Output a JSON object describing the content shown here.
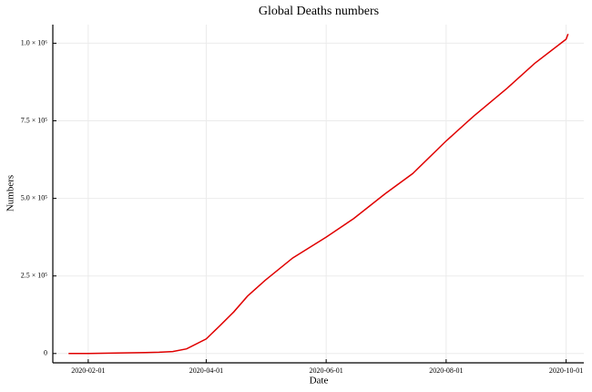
{
  "chart_data": {
    "type": "line",
    "title": "Global Deaths numbers",
    "x_label": "Date",
    "y_label": "Numbers",
    "x": [
      "2020-01-22",
      "2020-02-01",
      "2020-02-15",
      "2020-03-01",
      "2020-03-08",
      "2020-03-15",
      "2020-03-22",
      "2020-04-01",
      "2020-04-08",
      "2020-04-15",
      "2020-04-22",
      "2020-05-01",
      "2020-05-15",
      "2020-06-01",
      "2020-06-15",
      "2020-07-01",
      "2020-07-15",
      "2020-08-01",
      "2020-08-15",
      "2020-09-01",
      "2020-09-15",
      "2020-10-01",
      "2020-10-02"
    ],
    "series": [
      {
        "name": "Deaths",
        "color": "#e00000",
        "values": [
          17,
          259,
          1666,
          3000,
          4000,
          6500,
          15000,
          47000,
          90000,
          134000,
          185000,
          236000,
          308000,
          375000,
          435000,
          515000,
          580000,
          685000,
          765000,
          855000,
          935000,
          1013000,
          1030000
        ]
      }
    ],
    "xlim": [
      "2020-01-14",
      "2020-10-10"
    ],
    "xticks": [
      "2020-02-01",
      "2020-04-01",
      "2020-06-01",
      "2020-08-01",
      "2020-10-01"
    ],
    "ylim": [
      -30000,
      1060000
    ],
    "yticks": [
      0,
      {
        "value": 250000,
        "label": "2.5 × 10⁵"
      },
      {
        "value": 500000,
        "label": "5.0 × 10⁵"
      },
      {
        "value": 750000,
        "label": "7.5 × 10⁵"
      },
      {
        "value": 1000000,
        "label": "1.0 × 10⁶"
      }
    ],
    "grid": true
  }
}
